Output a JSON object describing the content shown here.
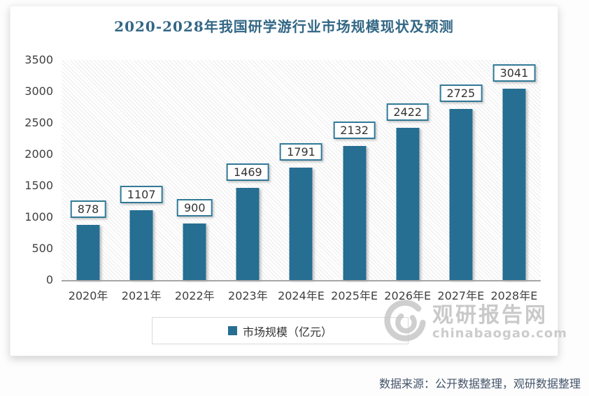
{
  "source_note": "数据来源：公开数据整理，观研数据整理",
  "legend": {
    "label": "市场规模（亿元）",
    "marker_color": "#266e92"
  },
  "watermark": {
    "site_name": "观研报告网",
    "site_domain": "chinabaogao.com",
    "logo_icon": "swirl-globe-icon"
  },
  "colors": {
    "bar": "#266e92",
    "title_text": "#336785",
    "data_label_border": "#317997",
    "axis_text": "#404040",
    "axis_line": "#a6a6a6",
    "source_text": "#44546a",
    "watermark_gray": "#c9c9c9"
  },
  "chart_data": {
    "type": "bar",
    "title": "2020-2028年我国研学游行业市场规模现状及预测",
    "categories": [
      "2020年",
      "2021年",
      "2022年",
      "2023年",
      "2024年E",
      "2025年E",
      "2026年E",
      "2027年E",
      "2028年E"
    ],
    "series": [
      {
        "name": "市场规模（亿元）",
        "values": [
          878,
          1107,
          900,
          1469,
          1791,
          2132,
          2422,
          2725,
          3041
        ]
      }
    ],
    "xlabel": "",
    "ylabel": "",
    "ylim": [
      0,
      3500
    ],
    "yticks": [
      0,
      500,
      1000,
      1500,
      2000,
      2500,
      3000,
      3500
    ],
    "grid": false,
    "plot_background": "diagonal-hatch",
    "legend_position": "bottom",
    "data_labels": true
  }
}
